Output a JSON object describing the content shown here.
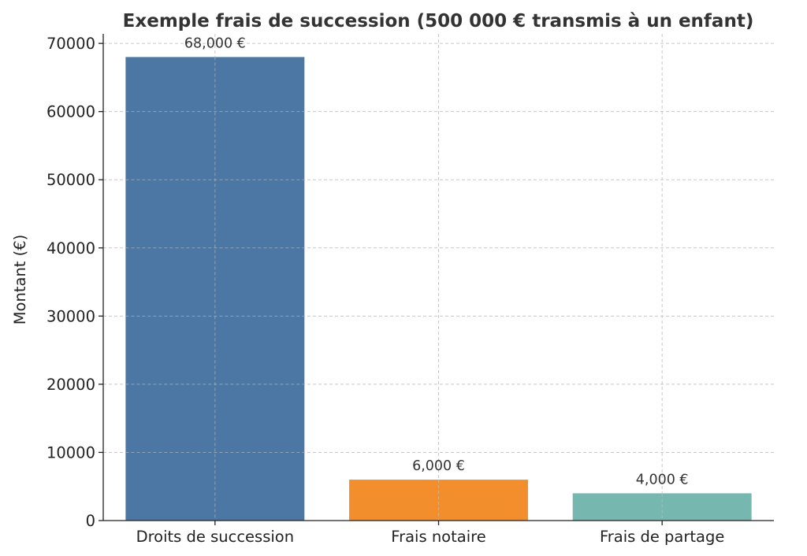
{
  "chart_data": {
    "type": "bar",
    "title": "Exemple frais de succession (500 000 € transmis à un enfant)",
    "xlabel": "",
    "ylabel": "Montant (€)",
    "categories": [
      "Droits de succession",
      "Frais notaire",
      "Frais de partage"
    ],
    "values": [
      68000,
      6000,
      4000
    ],
    "data_labels": [
      "68,000 €",
      "6,000 €",
      "4,000 €"
    ],
    "colors": [
      "#4c77a4",
      "#f28f2c",
      "#76b7b0"
    ],
    "ylim": [
      0,
      71400
    ],
    "yticks": [
      0,
      10000,
      20000,
      30000,
      40000,
      50000,
      60000,
      70000
    ],
    "ytick_labels": [
      "0",
      "10000",
      "20000",
      "30000",
      "40000",
      "50000",
      "60000",
      "70000"
    ],
    "grid": true,
    "legend": "none"
  }
}
